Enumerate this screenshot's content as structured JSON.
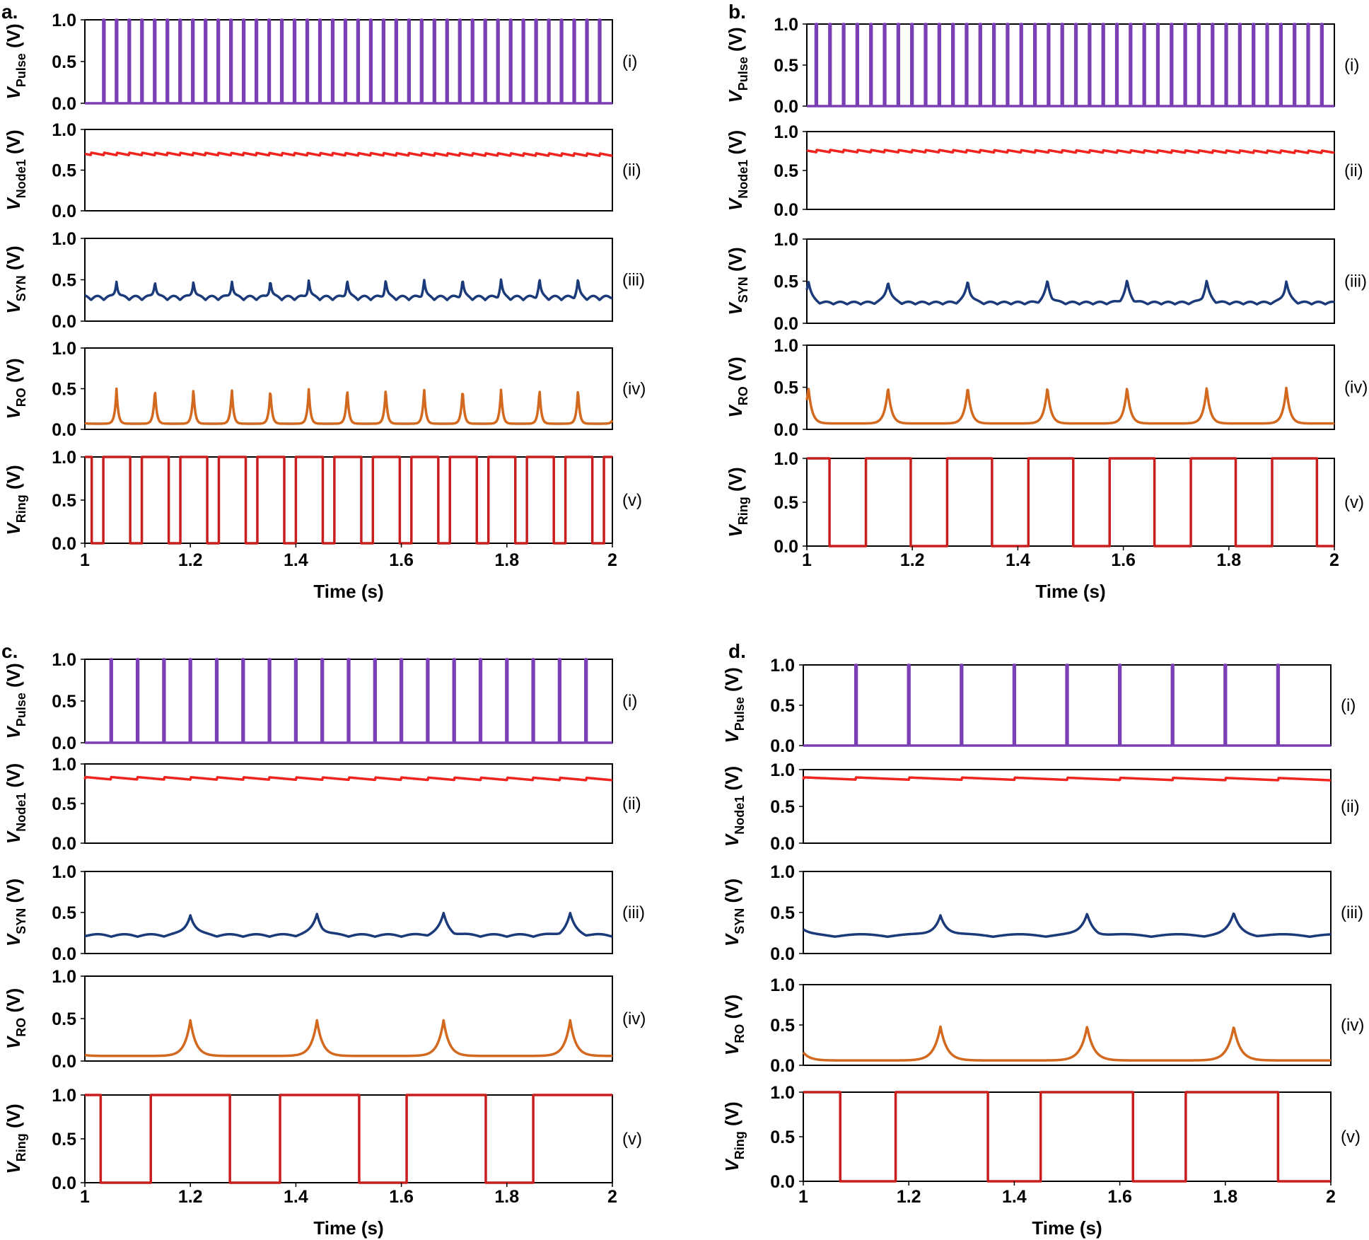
{
  "colors": {
    "pulse": "#7B3FB5",
    "node1": "#F0241E",
    "syn": "#1B3A7A",
    "ro": "#D2691E",
    "ring": "#C81E1E"
  },
  "trace_names": [
    "V_Pulse",
    "V_Node1",
    "V_SYN",
    "V_RO",
    "V_Ring"
  ],
  "chart_data": [
    {
      "panel": "a.",
      "type": "line",
      "x_axis": {
        "label": "Time (s)",
        "range": [
          1,
          2
        ],
        "ticks": [
          "1",
          "1.2",
          "1.4",
          "1.6",
          "1.8",
          "2"
        ]
      },
      "subplots": [
        {
          "tag": "(i)",
          "ylabel": {
            "main": "V",
            "sub": "Pulse",
            "unit": " (V)"
          },
          "yticks": [
            "0.0",
            "0.5",
            "1.0"
          ],
          "ylim": [
            0,
            1.0
          ],
          "color": "pulse",
          "signal": {
            "kind": "pulse",
            "period": 0.0241,
            "first": 1.036,
            "high": 1.0,
            "low": 0.0
          }
        },
        {
          "tag": "(ii)",
          "ylabel": {
            "main": "V",
            "sub": "Node1",
            "unit": " (V)"
          },
          "yticks": [
            "0.0",
            "0.5",
            "1.0"
          ],
          "ylim": [
            0,
            1.0
          ],
          "color": "node1",
          "signal": {
            "kind": "sawtooth",
            "period": 0.0241,
            "first": 1.036,
            "level": 0.7,
            "ripple": 0.03
          }
        },
        {
          "tag": "(iii)",
          "ylabel": {
            "main": "V",
            "sub": "SYN",
            "unit": " (V)"
          },
          "yticks": [
            "0.0",
            "0.5",
            "1.0"
          ],
          "ylim": [
            0,
            1.0
          ],
          "color": "syn",
          "signal": {
            "kind": "spikes",
            "period": 0.0729,
            "first": 1.06,
            "base": 0.28,
            "peak": 0.5,
            "wiggle_period": 0.0241,
            "wiggle": 0.05
          }
        },
        {
          "tag": "(iv)",
          "ylabel": {
            "main": "V",
            "sub": "RO",
            "unit": " (V)"
          },
          "yticks": [
            "0.0",
            "0.5",
            "1.0"
          ],
          "ylim": [
            0,
            1.0
          ],
          "color": "ro",
          "signal": {
            "kind": "spikes",
            "period": 0.0729,
            "first": 1.06,
            "base": 0.07,
            "peak": 0.5
          }
        },
        {
          "tag": "(v)",
          "ylabel": {
            "main": "V",
            "sub": "Ring",
            "unit": " (V)"
          },
          "yticks": [
            "0.0",
            "0.5",
            "1.0"
          ],
          "ylim": [
            0,
            1.0
          ],
          "color": "ring",
          "signal": {
            "kind": "square",
            "transitions": [
              1.0,
              1.013,
              1.035,
              1.086,
              1.108,
              1.159,
              1.181,
              1.232,
              1.254,
              1.305,
              1.327,
              1.378,
              1.4,
              1.451,
              1.473,
              1.524,
              1.546,
              1.597,
              1.619,
              1.67,
              1.692,
              1.743,
              1.765,
              1.816,
              1.838,
              1.889,
              1.911,
              1.962,
              1.984,
              2.0
            ],
            "start_high": true
          }
        }
      ]
    },
    {
      "panel": "b.",
      "type": "line",
      "x_axis": {
        "label": "Time (s)",
        "range": [
          1,
          2
        ],
        "ticks": [
          "1",
          "1.2",
          "1.4",
          "1.6",
          "1.8",
          "2"
        ]
      },
      "subplots": [
        {
          "tag": "(i)",
          "ylabel": {
            "main": "V",
            "sub": "Pulse",
            "unit": " (V)"
          },
          "yticks": [
            "0.0",
            "0.5",
            "1.0"
          ],
          "ylim": [
            0,
            1.0
          ],
          "color": "pulse",
          "signal": {
            "kind": "pulse",
            "period": 0.0259,
            "first": 1.018,
            "high": 1.0,
            "low": 0.0
          }
        },
        {
          "tag": "(ii)",
          "ylabel": {
            "main": "V",
            "sub": "Node1",
            "unit": " (V)"
          },
          "yticks": [
            "0.0",
            "0.5",
            "1.0"
          ],
          "ylim": [
            0,
            1.0
          ],
          "color": "node1",
          "signal": {
            "kind": "sawtooth",
            "period": 0.0259,
            "first": 1.018,
            "level": 0.75,
            "ripple": 0.03
          }
        },
        {
          "tag": "(iii)",
          "ylabel": {
            "main": "V",
            "sub": "SYN",
            "unit": " (V)"
          },
          "yticks": [
            "0.0",
            "0.5",
            "1.0"
          ],
          "ylim": [
            0,
            1.0
          ],
          "color": "syn",
          "signal": {
            "kind": "spikes",
            "period": 0.151,
            "first": 1.154,
            "base": 0.24,
            "peak": 0.5,
            "wiggle_period": 0.0259,
            "wiggle": 0.03
          }
        },
        {
          "tag": "(iv)",
          "ylabel": {
            "main": "V",
            "sub": "RO",
            "unit": " (V)"
          },
          "yticks": [
            "0.0",
            "0.5",
            "1.0"
          ],
          "ylim": [
            0,
            1.0
          ],
          "color": "ro",
          "signal": {
            "kind": "spikes",
            "period": 0.151,
            "first": 1.154,
            "base": 0.07,
            "peak": 0.5
          }
        },
        {
          "tag": "(v)",
          "ylabel": {
            "main": "V",
            "sub": "Ring",
            "unit": " (V)"
          },
          "yticks": [
            "0.0",
            "0.5",
            "1.0"
          ],
          "ylim": [
            0,
            1.0
          ],
          "color": "ring",
          "signal": {
            "kind": "square",
            "transitions": [
              1.0,
              1.043,
              1.112,
              1.197,
              1.266,
              1.351,
              1.42,
              1.505,
              1.574,
              1.659,
              1.728,
              1.813,
              1.882,
              1.967,
              2.0
            ],
            "start_high": true
          }
        }
      ]
    },
    {
      "panel": "c.",
      "type": "line",
      "x_axis": {
        "label": "Time (s)",
        "range": [
          1,
          2
        ],
        "ticks": [
          "1",
          "1.2",
          "1.4",
          "1.6",
          "1.8",
          "2"
        ]
      },
      "subplots": [
        {
          "tag": "(i)",
          "ylabel": {
            "main": "V",
            "sub": "Pulse",
            "unit": " (V)"
          },
          "yticks": [
            "0.0",
            "0.5",
            "1.0"
          ],
          "ylim": [
            0,
            1.0
          ],
          "color": "pulse",
          "signal": {
            "kind": "pulse",
            "period": 0.05,
            "first": 1.05,
            "high": 1.0,
            "low": 0.0
          }
        },
        {
          "tag": "(ii)",
          "ylabel": {
            "main": "V",
            "sub": "Node1",
            "unit": " (V)"
          },
          "yticks": [
            "0.0",
            "0.5",
            "1.0"
          ],
          "ylim": [
            0,
            1.0
          ],
          "color": "node1",
          "signal": {
            "kind": "sawtooth",
            "period": 0.05,
            "first": 1.05,
            "level": 0.82,
            "ripple": 0.03
          }
        },
        {
          "tag": "(iii)",
          "ylabel": {
            "main": "V",
            "sub": "SYN",
            "unit": " (V)"
          },
          "yticks": [
            "0.0",
            "0.5",
            "1.0"
          ],
          "ylim": [
            0,
            1.0
          ],
          "color": "syn",
          "signal": {
            "kind": "spikes",
            "period": 0.24,
            "first": 1.2,
            "base": 0.22,
            "peak": 0.48,
            "wiggle_period": 0.05,
            "wiggle": 0.03
          }
        },
        {
          "tag": "(iv)",
          "ylabel": {
            "main": "V",
            "sub": "RO",
            "unit": " (V)"
          },
          "yticks": [
            "0.0",
            "0.5",
            "1.0"
          ],
          "ylim": [
            0,
            1.0
          ],
          "color": "ro",
          "signal": {
            "kind": "spikes",
            "period": 0.24,
            "first": 1.2,
            "base": 0.06,
            "peak": 0.48
          }
        },
        {
          "tag": "(v)",
          "ylabel": {
            "main": "V",
            "sub": "Ring",
            "unit": " (V)"
          },
          "yticks": [
            "0.0",
            "0.5",
            "1.0"
          ],
          "ylim": [
            0,
            1.0
          ],
          "color": "ring",
          "signal": {
            "kind": "square",
            "transitions": [
              1.0,
              1.03,
              1.125,
              1.275,
              1.37,
              1.52,
              1.61,
              1.76,
              1.85,
              2.0
            ],
            "start_high": true
          }
        }
      ]
    },
    {
      "panel": "d.",
      "type": "line",
      "x_axis": {
        "label": "Time (s)",
        "range": [
          1,
          2
        ],
        "ticks": [
          "1",
          "1.2",
          "1.4",
          "1.6",
          "1.8",
          "2"
        ]
      },
      "subplots": [
        {
          "tag": "(i)",
          "ylabel": {
            "main": "V",
            "sub": "Pulse",
            "unit": " (V)"
          },
          "yticks": [
            "0.0",
            "0.5",
            "1.0"
          ],
          "ylim": [
            0,
            1.0
          ],
          "color": "pulse",
          "signal": {
            "kind": "pulse",
            "period": 0.1,
            "first": 1.1,
            "high": 1.0,
            "low": 0.0
          }
        },
        {
          "tag": "(ii)",
          "ylabel": {
            "main": "V",
            "sub": "Node1",
            "unit": " (V)"
          },
          "yticks": [
            "0.0",
            "0.5",
            "1.0"
          ],
          "ylim": [
            0,
            1.0
          ],
          "color": "node1",
          "signal": {
            "kind": "sawtooth",
            "period": 0.1,
            "first": 1.1,
            "level": 0.88,
            "ripple": 0.03
          }
        },
        {
          "tag": "(iii)",
          "ylabel": {
            "main": "V",
            "sub": "SYN",
            "unit": " (V)"
          },
          "yticks": [
            "0.0",
            "0.5",
            "1.0"
          ],
          "ylim": [
            0,
            1.0
          ],
          "color": "syn",
          "signal": {
            "kind": "spikes",
            "period": 0.278,
            "first": 1.26,
            "base": 0.22,
            "peak": 0.48,
            "wiggle_period": 0.1,
            "wiggle": 0.03
          }
        },
        {
          "tag": "(iv)",
          "ylabel": {
            "main": "V",
            "sub": "RO",
            "unit": " (V)"
          },
          "yticks": [
            "0.0",
            "0.5",
            "1.0"
          ],
          "ylim": [
            0,
            1.0
          ],
          "color": "ro",
          "signal": {
            "kind": "spikes",
            "period": 0.278,
            "first": 1.26,
            "base": 0.06,
            "peak": 0.48
          }
        },
        {
          "tag": "(v)",
          "ylabel": {
            "main": "V",
            "sub": "Ring",
            "unit": " (V)"
          },
          "yticks": [
            "0.0",
            "0.5",
            "1.0"
          ],
          "ylim": [
            0,
            1.0
          ],
          "color": "ring",
          "signal": {
            "kind": "square",
            "transitions": [
              1.0,
              1.07,
              1.175,
              1.35,
              1.45,
              1.625,
              1.725,
              1.9,
              2.0
            ],
            "start_high": true
          }
        }
      ]
    }
  ]
}
